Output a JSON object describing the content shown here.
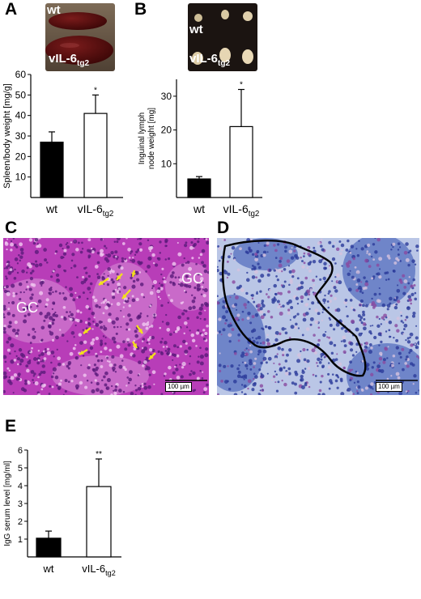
{
  "panels": {
    "a": "A",
    "b": "B",
    "c": "C",
    "d": "D",
    "e": "E"
  },
  "photos": {
    "spleen": {
      "label_top": "wt",
      "label_bottom_main": "vIL-6",
      "label_bottom_sub": "tg2"
    },
    "lymph": {
      "label_top": "wt",
      "label_bottom_main": "vIL-6",
      "label_bottom_sub": "tg2"
    }
  },
  "histology": {
    "c": {
      "gc_left": "GC",
      "gc_right": "GC",
      "scale": "100 µm",
      "arrow_color": "#f2e01c"
    },
    "d": {
      "scale": "100 µm"
    }
  },
  "colors": {
    "bar_wt": "#000000",
    "bar_tg": "#ffffff",
    "stain_he": "#c44cc4",
    "stain_blue": "#4a63c4"
  },
  "chart_data": [
    {
      "id": "A",
      "type": "bar",
      "categories": [
        "wt",
        "vIL-6"
      ],
      "category_subscripts": [
        "",
        "tg2"
      ],
      "values": [
        27,
        41
      ],
      "errors": [
        5,
        9
      ],
      "significance": [
        "",
        "*"
      ],
      "ylabel": "Spleen/body weight [mg/g]",
      "ylim": [
        0,
        60
      ],
      "yticks": [
        10,
        20,
        30,
        40,
        50,
        60
      ]
    },
    {
      "id": "B",
      "type": "bar",
      "categories": [
        "wt",
        "vIL-6"
      ],
      "category_subscripts": [
        "",
        "tg2"
      ],
      "values": [
        5.5,
        21
      ],
      "errors": [
        0.7,
        11
      ],
      "significance": [
        "",
        "*"
      ],
      "ylabel_lines": [
        "Inguinal lymph",
        "node weight [mg]"
      ],
      "ylim": [
        0,
        35
      ],
      "yticks": [
        10,
        20,
        30
      ]
    },
    {
      "id": "E",
      "type": "bar",
      "categories": [
        "wt",
        "vIL-6"
      ],
      "category_subscripts": [
        "",
        "tg2"
      ],
      "values": [
        1.05,
        3.95
      ],
      "errors": [
        0.4,
        1.55
      ],
      "significance": [
        "",
        "**"
      ],
      "ylabel": "IgG serum level [mg/ml]",
      "ylim": [
        0,
        6
      ],
      "yticks": [
        1,
        2,
        3,
        4,
        5,
        6
      ]
    }
  ]
}
